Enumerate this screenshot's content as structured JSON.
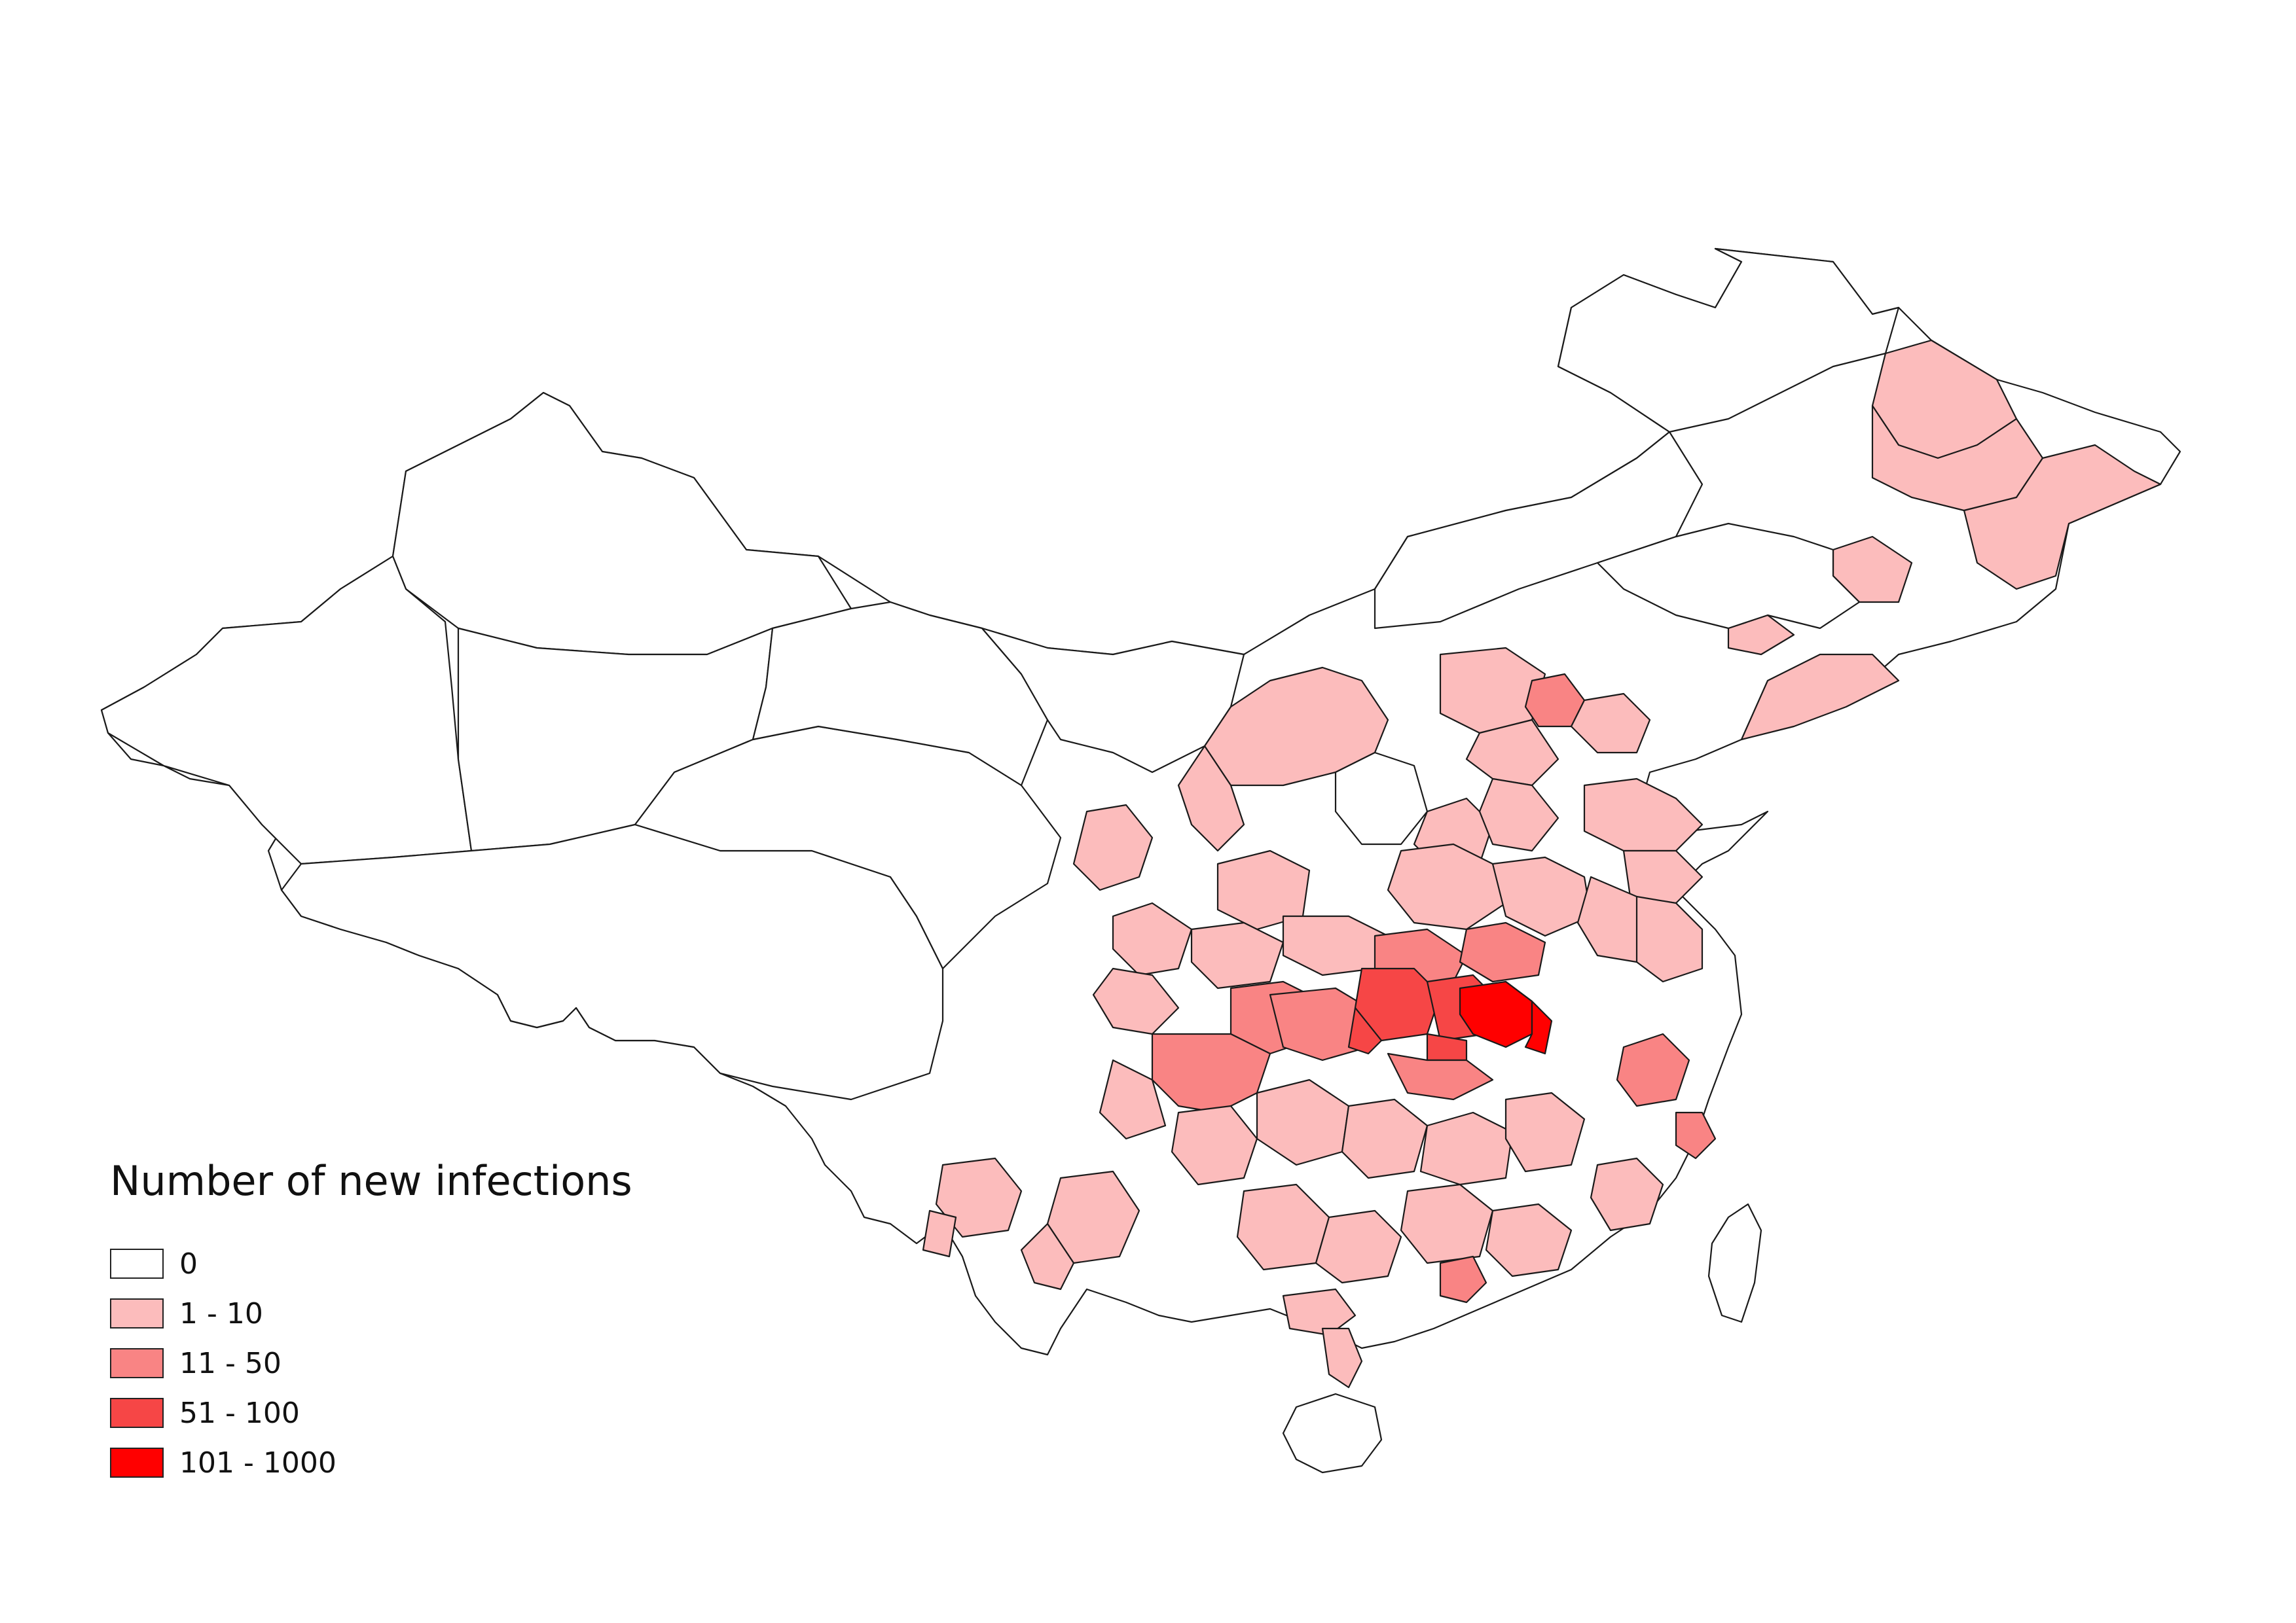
{
  "legend": {
    "title": "Number of new infections",
    "items": [
      {
        "label": "0",
        "color": "#ffffff"
      },
      {
        "label": "1 - 10",
        "color": "#fcbcbc"
      },
      {
        "label": "11 - 50",
        "color": "#f98484"
      },
      {
        "label": "51 - 100",
        "color": "#f64646"
      },
      {
        "label": "101 - 1000",
        "color": "#ff0000"
      }
    ]
  }
}
